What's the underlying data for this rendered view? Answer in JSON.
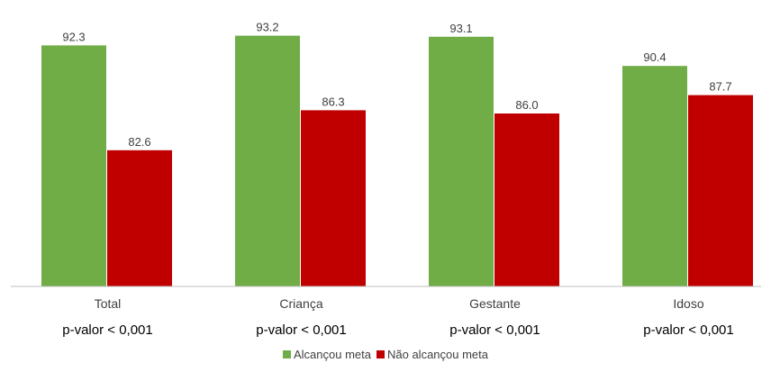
{
  "chart_data": {
    "type": "bar",
    "categories": [
      "Total",
      "Criança",
      "Gestante",
      "Idoso"
    ],
    "series": [
      {
        "name": "Alcançou meta",
        "values": [
          92.3,
          93.2,
          93.1,
          90.4
        ],
        "color": "#70ad47"
      },
      {
        "name": "Não alcançou meta",
        "values": [
          82.6,
          86.3,
          86.0,
          87.7
        ],
        "color": "#c00000"
      }
    ],
    "data_labels": [
      [
        "92.3",
        "93.2",
        "93.1",
        "90.4"
      ],
      [
        "82.6",
        "86.3",
        "86.0",
        "87.7"
      ]
    ],
    "annotations": [
      "p-valor < 0,001",
      "p-valor < 0,001",
      "p-valor < 0,001",
      "p-valor < 0,001"
    ],
    "title": "",
    "xlabel": "",
    "ylabel": "",
    "ylim": [
      70,
      94
    ],
    "grid": false,
    "legend_position": "bottom-center"
  }
}
